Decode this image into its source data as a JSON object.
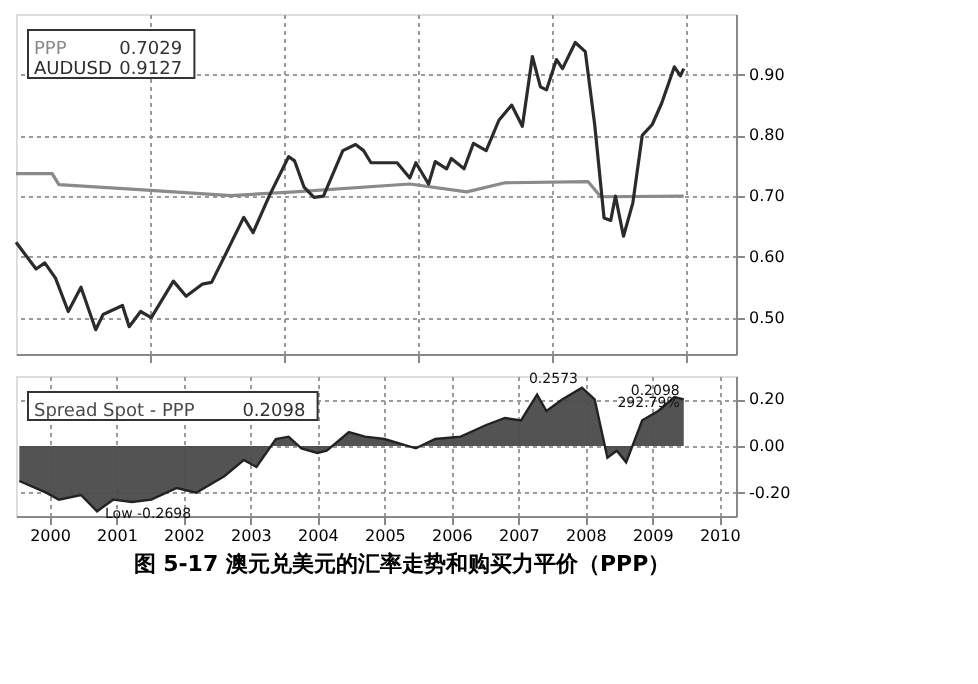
{
  "chart_data": [
    {
      "type": "line",
      "legend": "top left",
      "grid": true,
      "tick_labels": "y",
      "xlim": [
        2000,
        2010.75
      ],
      "ylim": [
        0.44,
        1.0
      ],
      "xticks": [
        {
          "value": 2002,
          "label": null
        },
        {
          "value": 2004,
          "label": null
        },
        {
          "value": 2006,
          "label": null
        },
        {
          "value": 2008,
          "label": null
        },
        {
          "value": 2010,
          "label": null
        }
      ],
      "yticks": [
        {
          "value": 0.5,
          "label": "0.50"
        },
        {
          "value": 0.6,
          "label": "0.60"
        },
        {
          "value": 0.7,
          "label": "0.70"
        },
        {
          "value": 0.8,
          "label": "0.80"
        },
        {
          "value": 0.9,
          "label": "0.90"
        }
      ],
      "annotations": [
        "0.7029",
        "0.9127"
      ],
      "series": [
        {
          "name": "PPP",
          "color": "#8a8a8a",
          "x": [
            2000.0,
            2000.54,
            2000.64,
            2001.78,
            2003.21,
            2004.16,
            2005.88,
            2006.73,
            2007.3,
            2008.54,
            2008.73,
            2009.97
          ],
          "values": [
            0.737,
            0.737,
            0.719,
            0.711,
            0.701,
            0.707,
            0.72,
            0.707,
            0.722,
            0.724,
            0.699,
            0.7
          ]
        },
        {
          "name": "AUDUSD",
          "color": "#2b2b2b",
          "x": [
            2000.0,
            2000.3,
            2000.43,
            2000.59,
            2000.78,
            2000.97,
            2001.19,
            2001.3,
            2001.59,
            2001.69,
            2001.86,
            2002.02,
            2002.35,
            2002.54,
            2002.78,
            2002.92,
            2003.11,
            2003.4,
            2003.54,
            2003.78,
            2004.07,
            2004.16,
            2004.3,
            2004.45,
            2004.59,
            2004.88,
            2005.07,
            2005.19,
            2005.3,
            2005.69,
            2005.88,
            2005.97,
            2006.16,
            2006.26,
            2006.43,
            2006.5,
            2006.69,
            2006.83,
            2007.02,
            2007.21,
            2007.4,
            2007.56,
            2007.71,
            2007.83,
            2007.92,
            2008.07,
            2008.16,
            2008.35,
            2008.5,
            2008.64,
            2008.78,
            2008.88,
            2008.95,
            2009.07,
            2009.21,
            2009.35,
            2009.5,
            2009.64,
            2009.83,
            2009.92,
            2009.97
          ],
          "values": [
            0.624,
            0.58,
            0.59,
            0.565,
            0.51,
            0.55,
            0.48,
            0.505,
            0.52,
            0.485,
            0.51,
            0.5,
            0.56,
            0.535,
            0.555,
            0.558,
            0.6,
            0.665,
            0.64,
            0.7,
            0.765,
            0.758,
            0.715,
            0.698,
            0.7,
            0.775,
            0.785,
            0.775,
            0.755,
            0.755,
            0.73,
            0.755,
            0.72,
            0.757,
            0.745,
            0.762,
            0.745,
            0.787,
            0.775,
            0.825,
            0.85,
            0.815,
            0.93,
            0.88,
            0.875,
            0.925,
            0.91,
            0.953,
            0.938,
            0.818,
            0.664,
            0.66,
            0.7,
            0.634,
            0.689,
            0.8,
            0.818,
            0.853,
            0.913,
            0.898,
            0.91
          ]
        }
      ]
    },
    {
      "type": "area",
      "legend": "top left",
      "grid": true,
      "title": "图 5-17 澳元兑美元的汇率走势和购买力平价（PPP）",
      "xlim": [
        2000,
        2010.75
      ],
      "ylim": [
        -0.3,
        0.3
      ],
      "xticks": [
        {
          "value": 2000.5,
          "label": "2000"
        },
        {
          "value": 2001.5,
          "label": "2001"
        },
        {
          "value": 2002.5,
          "label": "2002"
        },
        {
          "value": 2003.5,
          "label": "2003"
        },
        {
          "value": 2004.5,
          "label": "2004"
        },
        {
          "value": 2005.5,
          "label": "2005"
        },
        {
          "value": 2006.5,
          "label": "2006"
        },
        {
          "value": 2007.5,
          "label": "2007"
        },
        {
          "value": 2008.5,
          "label": "2008"
        },
        {
          "value": 2009.5,
          "label": "2009"
        },
        {
          "value": 2010.5,
          "label": "2010"
        }
      ],
      "yticks": [
        {
          "value": -0.2,
          "label": "-0.20"
        },
        {
          "value": 0,
          "label": "0.00"
        },
        {
          "value": 0.2,
          "label": "0.20"
        }
      ],
      "annotations": [
        "0.2098",
        {
          "text": "Low -0.2698",
          "x": 2001.21,
          "y": -0.276
        },
        {
          "text": "0.2573",
          "x": 2008.45,
          "y": 0.254
        },
        {
          "text": "0.2098",
          "x": 2009.97,
          "y": 0.2
        },
        {
          "text": "292.79%",
          "x": 2009.97,
          "y": 0.15
        }
      ],
      "series": [
        {
          "name": "Spread Spot - PPP",
          "color": "#4a4a4a",
          "x": [
            2000.05,
            2000.45,
            2000.64,
            2000.97,
            2001.21,
            2001.45,
            2001.73,
            2002.02,
            2002.4,
            2002.69,
            2003.11,
            2003.4,
            2003.59,
            2003.88,
            2004.07,
            2004.26,
            2004.5,
            2004.64,
            2004.97,
            2005.21,
            2005.5,
            2005.97,
            2006.26,
            2006.64,
            2007.02,
            2007.3,
            2007.54,
            2007.78,
            2007.92,
            2008.16,
            2008.45,
            2008.64,
            2008.83,
            2008.97,
            2009.11,
            2009.35,
            2009.59,
            2009.83,
            2009.97
          ],
          "values": [
            -0.15,
            -0.2,
            -0.23,
            -0.21,
            -0.28,
            -0.23,
            -0.24,
            -0.23,
            -0.18,
            -0.2,
            -0.13,
            -0.06,
            -0.09,
            0.03,
            0.04,
            -0.01,
            -0.03,
            -0.02,
            0.06,
            0.04,
            0.03,
            -0.01,
            0.03,
            0.04,
            0.09,
            0.12,
            0.11,
            0.22,
            0.15,
            0.2,
            0.25,
            0.2,
            -0.05,
            -0.02,
            -0.07,
            0.11,
            0.15,
            0.21,
            0.2
          ]
        }
      ]
    }
  ]
}
